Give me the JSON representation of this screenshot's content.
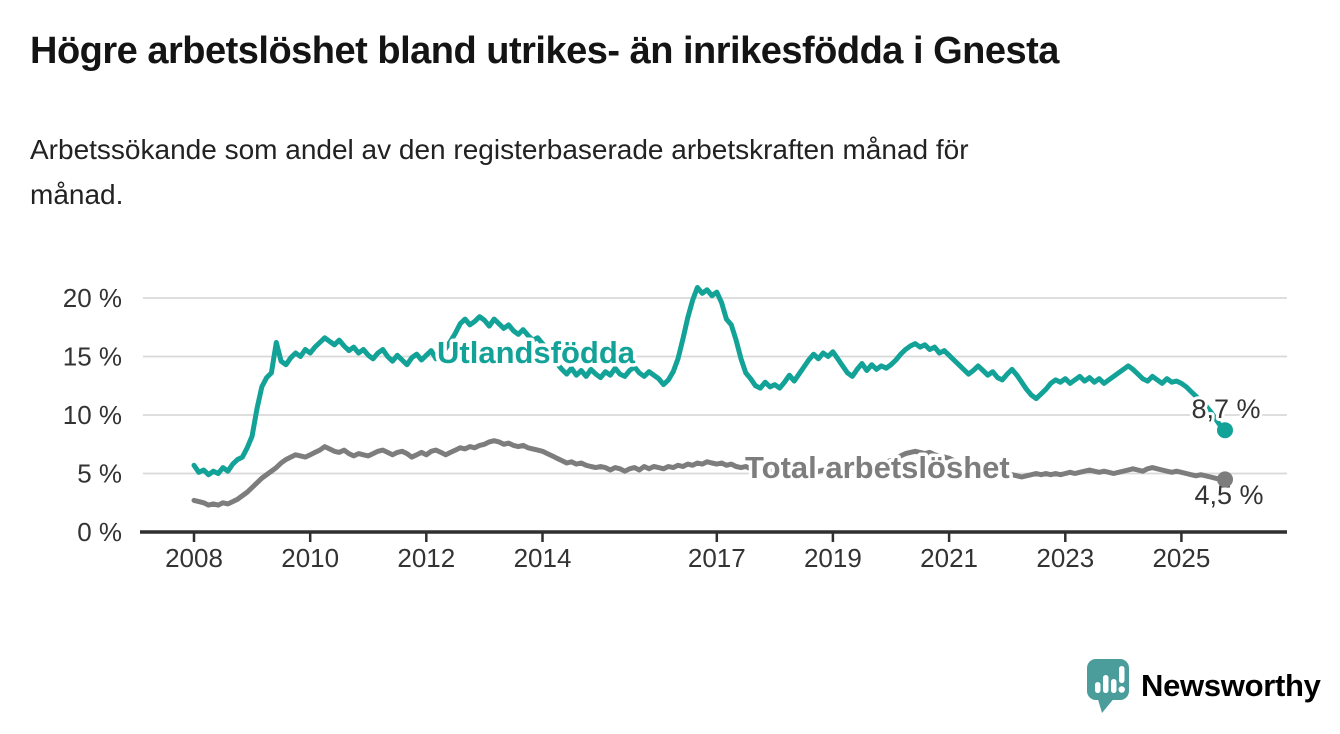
{
  "header": {
    "title": "Högre arbetslöshet bland utrikes- än inrikesfödda i Gnesta",
    "subtitle_line1": "Arbetssökande som andel av den registerbaserade arbetskraften månad för",
    "subtitle_line2": "månad."
  },
  "colors": {
    "teal": "#13a297",
    "gray": "#7d7d7d",
    "grid": "#d9d9d9",
    "axis": "#2f2f2f",
    "text": "#333333",
    "background": "#ffffff",
    "brand": "#4a9d9b"
  },
  "chart_data": {
    "type": "line",
    "title": "Högre arbetslöshet bland utrikes- än inrikesfödda i Gnesta",
    "x_unit": "month",
    "x_start": "2008-01",
    "x_end": "2025-10",
    "ylim": [
      0,
      21.5
    ],
    "grid": true,
    "x_ticks": [
      {
        "label": "2008",
        "year": 2008
      },
      {
        "label": "2010",
        "year": 2010
      },
      {
        "label": "2012",
        "year": 2012
      },
      {
        "label": "2014",
        "year": 2014
      },
      {
        "label": "2017",
        "year": 2017
      },
      {
        "label": "2019",
        "year": 2019
      },
      {
        "label": "2021",
        "year": 2021
      },
      {
        "label": "2023",
        "year": 2023
      },
      {
        "label": "2025",
        "year": 2025
      }
    ],
    "y_ticks": [
      {
        "value": 0,
        "label": "0 %"
      },
      {
        "value": 5,
        "label": "5 %"
      },
      {
        "value": 10,
        "label": "10 %"
      },
      {
        "value": 15,
        "label": "15 %"
      },
      {
        "value": 20,
        "label": "20 %"
      }
    ],
    "series": [
      {
        "name": "Utlandsfödda",
        "color": "#13a297",
        "end_label": "8,7 %",
        "last_value": 8.7,
        "values": [
          5.7,
          5.1,
          5.3,
          4.9,
          5.2,
          5.0,
          5.5,
          5.2,
          5.8,
          6.2,
          6.4,
          7.2,
          8.2,
          10.5,
          12.4,
          13.2,
          13.6,
          16.2,
          14.6,
          14.3,
          14.9,
          15.3,
          15.0,
          15.6,
          15.3,
          15.8,
          16.2,
          16.6,
          16.3,
          16.0,
          16.4,
          15.9,
          15.5,
          15.8,
          15.3,
          15.6,
          15.1,
          14.8,
          15.3,
          15.6,
          15.0,
          14.6,
          15.1,
          14.7,
          14.3,
          14.9,
          15.2,
          14.7,
          15.1,
          15.5,
          14.8,
          15.2,
          15.7,
          16.3,
          17.0,
          17.8,
          18.2,
          17.7,
          18.0,
          18.4,
          18.1,
          17.6,
          18.2,
          17.8,
          17.4,
          17.7,
          17.2,
          16.9,
          17.3,
          16.8,
          16.4,
          16.6,
          16.1,
          15.6,
          15.0,
          14.4,
          13.9,
          13.5,
          14.0,
          13.4,
          13.8,
          13.3,
          13.9,
          13.5,
          13.2,
          13.7,
          13.4,
          14.0,
          13.5,
          13.3,
          13.8,
          14.1,
          13.6,
          13.3,
          13.7,
          13.4,
          13.1,
          12.6,
          13.0,
          13.7,
          14.8,
          16.5,
          18.3,
          19.8,
          20.9,
          20.4,
          20.7,
          20.2,
          20.5,
          19.6,
          18.2,
          17.7,
          16.4,
          14.8,
          13.6,
          13.1,
          12.5,
          12.3,
          12.8,
          12.4,
          12.6,
          12.3,
          12.8,
          13.4,
          12.9,
          13.5,
          14.1,
          14.7,
          15.2,
          14.8,
          15.3,
          15.0,
          15.4,
          14.8,
          14.2,
          13.6,
          13.3,
          13.9,
          14.4,
          13.8,
          14.3,
          13.9,
          14.2,
          14.0,
          14.3,
          14.7,
          15.2,
          15.6,
          15.9,
          16.1,
          15.8,
          16.0,
          15.6,
          15.8,
          15.3,
          15.5,
          15.1,
          14.7,
          14.3,
          13.9,
          13.5,
          13.8,
          14.2,
          13.8,
          13.4,
          13.7,
          13.2,
          13.0,
          13.5,
          13.9,
          13.4,
          12.8,
          12.2,
          11.7,
          11.4,
          11.8,
          12.2,
          12.7,
          13.0,
          12.8,
          13.1,
          12.7,
          13.0,
          13.3,
          12.9,
          13.2,
          12.8,
          13.1,
          12.7,
          13.0,
          13.3,
          13.6,
          13.9,
          14.2,
          13.9,
          13.5,
          13.1,
          12.9,
          13.3,
          13.0,
          12.7,
          13.1,
          12.8,
          12.9,
          12.7,
          12.4,
          12.0,
          11.6,
          11.2,
          10.8,
          10.3,
          9.7,
          9.1,
          8.7
        ]
      },
      {
        "name": "Total arbetslöshet",
        "color": "#7d7d7d",
        "end_label": "4,5 %",
        "last_value": 4.5,
        "values": [
          2.7,
          2.6,
          2.5,
          2.3,
          2.4,
          2.3,
          2.5,
          2.4,
          2.6,
          2.8,
          3.1,
          3.4,
          3.8,
          4.2,
          4.6,
          4.9,
          5.2,
          5.5,
          5.9,
          6.2,
          6.4,
          6.6,
          6.5,
          6.4,
          6.6,
          6.8,
          7.0,
          7.3,
          7.1,
          6.9,
          6.8,
          7.0,
          6.7,
          6.5,
          6.7,
          6.6,
          6.5,
          6.7,
          6.9,
          7.0,
          6.8,
          6.6,
          6.8,
          6.9,
          6.7,
          6.4,
          6.6,
          6.8,
          6.6,
          6.9,
          7.0,
          6.8,
          6.6,
          6.8,
          7.0,
          7.2,
          7.1,
          7.3,
          7.2,
          7.4,
          7.5,
          7.7,
          7.8,
          7.7,
          7.5,
          7.6,
          7.4,
          7.3,
          7.4,
          7.2,
          7.1,
          7.0,
          6.9,
          6.7,
          6.5,
          6.3,
          6.1,
          5.9,
          6.0,
          5.8,
          5.9,
          5.7,
          5.6,
          5.5,
          5.6,
          5.5,
          5.3,
          5.5,
          5.4,
          5.2,
          5.4,
          5.5,
          5.3,
          5.6,
          5.4,
          5.6,
          5.5,
          5.4,
          5.6,
          5.5,
          5.7,
          5.6,
          5.8,
          5.7,
          5.9,
          5.8,
          6.0,
          5.9,
          5.8,
          5.9,
          5.7,
          5.8,
          5.6,
          5.5,
          5.6,
          5.4,
          5.5,
          5.3,
          5.4,
          5.2,
          5.3,
          5.2,
          5.1,
          5.2,
          5.0,
          5.1,
          5.2,
          5.1,
          5.0,
          5.2,
          5.3,
          5.2,
          5.4,
          5.3,
          5.5,
          5.4,
          5.6,
          5.5,
          5.7,
          5.6,
          5.8,
          5.7,
          5.9,
          6.0,
          6.1,
          6.3,
          6.5,
          6.7,
          6.8,
          6.9,
          6.8,
          6.7,
          6.8,
          6.6,
          6.5,
          6.4,
          6.3,
          6.1,
          5.9,
          5.7,
          5.5,
          5.3,
          5.2,
          5.1,
          5.0,
          4.9,
          5.0,
          4.9,
          4.8,
          4.9,
          4.8,
          4.7,
          4.8,
          4.9,
          5.0,
          4.9,
          5.0,
          4.9,
          5.0,
          4.9,
          5.0,
          5.1,
          5.0,
          5.1,
          5.2,
          5.3,
          5.2,
          5.1,
          5.2,
          5.1,
          5.0,
          5.1,
          5.2,
          5.3,
          5.4,
          5.3,
          5.2,
          5.4,
          5.5,
          5.4,
          5.3,
          5.2,
          5.1,
          5.2,
          5.1,
          5.0,
          4.9,
          4.8,
          4.9,
          4.8,
          4.7,
          4.6,
          4.5,
          4.5
        ]
      }
    ],
    "annotations": {
      "series_labels": [
        {
          "text": "Utlandsfödda",
          "color": "#13a297",
          "x": 437,
          "y": 363
        },
        {
          "text": "Total arbetslöshet",
          "color": "#7d7d7d",
          "x": 745,
          "y": 478
        }
      ],
      "end_labels": [
        {
          "text": "8,7 %",
          "x": 1226,
          "y": 418
        },
        {
          "text": "4,5 %",
          "x": 1229,
          "y": 504
        }
      ],
      "legend_position": "inline"
    }
  },
  "footer": {
    "brand": "Newsworthy"
  }
}
